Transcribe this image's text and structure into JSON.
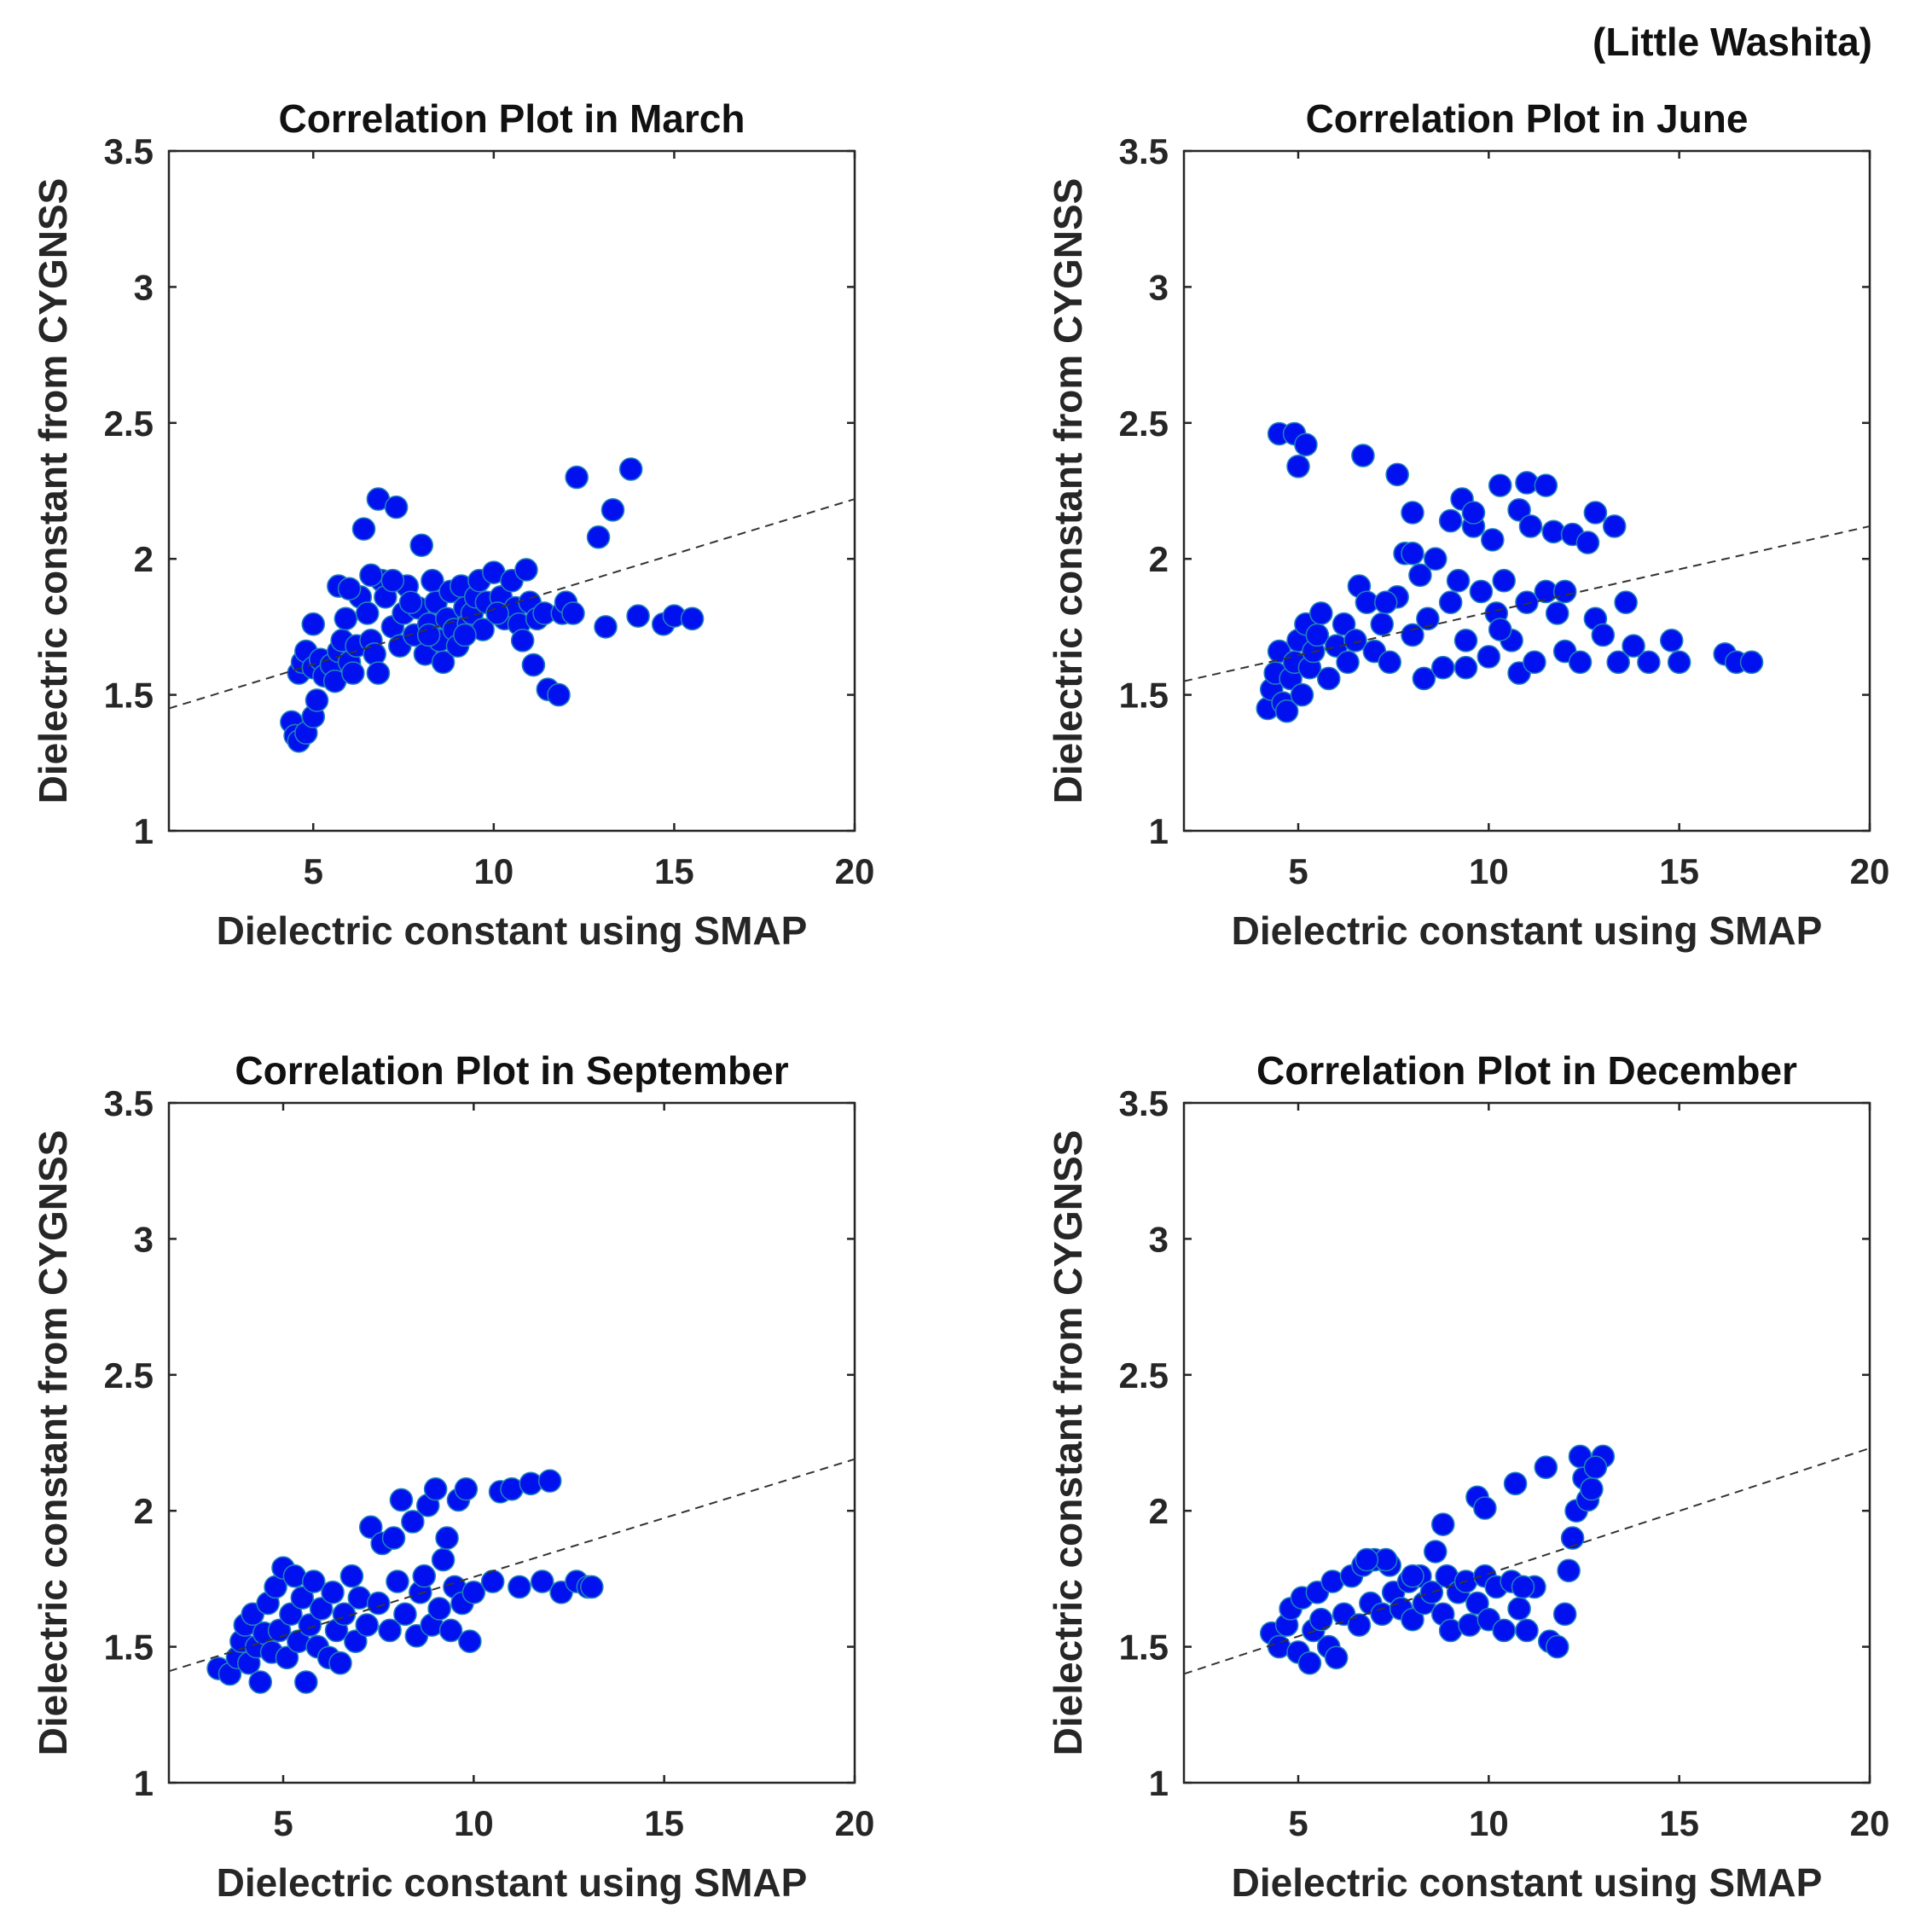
{
  "figure_note": "(Little Washita)",
  "chart_data": [
    {
      "type": "scatter",
      "title": "Correlation Plot in March",
      "xlabel": "Dielectric constant using SMAP",
      "ylabel": "Dielectric constant from CYGNSS",
      "xlim": [
        1,
        20
      ],
      "ylim": [
        1,
        3.5
      ],
      "xticks": [
        5,
        10,
        15,
        20
      ],
      "yticks": [
        1,
        1.5,
        2,
        2.5,
        3,
        3.5
      ],
      "xtick_labels": [
        "5",
        "10",
        "15",
        "20"
      ],
      "ytick_labels": [
        "1",
        "1.5",
        "2",
        "2.5",
        "3",
        "3.5"
      ],
      "fit_line": {
        "x": [
          1,
          20
        ],
        "y": [
          1.45,
          2.22
        ]
      },
      "marker_color": "#0010ee",
      "points": [
        [
          4.4,
          1.4
        ],
        [
          4.5,
          1.35
        ],
        [
          4.6,
          1.33
        ],
        [
          4.8,
          1.36
        ],
        [
          5.0,
          1.42
        ],
        [
          5.1,
          1.48
        ],
        [
          5.0,
          1.76
        ],
        [
          4.6,
          1.58
        ],
        [
          4.7,
          1.62
        ],
        [
          4.8,
          1.66
        ],
        [
          5.0,
          1.6
        ],
        [
          5.2,
          1.63
        ],
        [
          5.3,
          1.57
        ],
        [
          5.5,
          1.61
        ],
        [
          5.6,
          1.55
        ],
        [
          5.7,
          1.66
        ],
        [
          5.8,
          1.7
        ],
        [
          5.9,
          1.78
        ],
        [
          6.0,
          1.62
        ],
        [
          6.1,
          1.58
        ],
        [
          6.2,
          1.68
        ],
        [
          6.3,
          1.86
        ],
        [
          5.7,
          1.9
        ],
        [
          6.0,
          1.89
        ],
        [
          6.4,
          2.11
        ],
        [
          6.5,
          1.8
        ],
        [
          6.6,
          1.7
        ],
        [
          6.7,
          1.65
        ],
        [
          6.8,
          1.58
        ],
        [
          6.9,
          1.92
        ],
        [
          6.8,
          2.22
        ],
        [
          7.3,
          2.19
        ],
        [
          7.0,
          1.86
        ],
        [
          7.2,
          1.75
        ],
        [
          7.4,
          1.68
        ],
        [
          7.5,
          1.8
        ],
        [
          7.6,
          1.9
        ],
        [
          7.8,
          1.72
        ],
        [
          7.9,
          1.82
        ],
        [
          8.0,
          2.05
        ],
        [
          8.1,
          1.65
        ],
        [
          8.2,
          1.76
        ],
        [
          8.3,
          1.92
        ],
        [
          8.4,
          1.84
        ],
        [
          8.5,
          1.7
        ],
        [
          8.6,
          1.62
        ],
        [
          8.7,
          1.78
        ],
        [
          8.8,
          1.88
        ],
        [
          8.9,
          1.74
        ],
        [
          9.0,
          1.68
        ],
        [
          9.1,
          1.9
        ],
        [
          9.2,
          1.82
        ],
        [
          9.3,
          1.76
        ],
        [
          9.4,
          1.8
        ],
        [
          9.5,
          1.86
        ],
        [
          9.6,
          1.92
        ],
        [
          9.7,
          1.74
        ],
        [
          9.8,
          1.84
        ],
        [
          10.0,
          1.95
        ],
        [
          10.2,
          1.86
        ],
        [
          10.3,
          1.78
        ],
        [
          10.5,
          1.92
        ],
        [
          10.6,
          1.82
        ],
        [
          10.7,
          1.76
        ],
        [
          10.8,
          1.7
        ],
        [
          10.9,
          1.96
        ],
        [
          11.0,
          1.84
        ],
        [
          11.1,
          1.61
        ],
        [
          11.2,
          1.78
        ],
        [
          11.4,
          1.8
        ],
        [
          11.5,
          1.52
        ],
        [
          11.8,
          1.5
        ],
        [
          11.9,
          1.8
        ],
        [
          12.0,
          1.84
        ],
        [
          12.2,
          1.8
        ],
        [
          12.3,
          2.3
        ],
        [
          12.9,
          2.08
        ],
        [
          13.1,
          1.75
        ],
        [
          13.3,
          2.18
        ],
        [
          13.8,
          2.33
        ],
        [
          14.0,
          1.79
        ],
        [
          14.7,
          1.76
        ],
        [
          15.0,
          1.79
        ],
        [
          15.5,
          1.78
        ],
        [
          7.2,
          1.92
        ],
        [
          7.7,
          1.84
        ],
        [
          8.2,
          1.72
        ],
        [
          9.2,
          1.72
        ],
        [
          10.1,
          1.8
        ],
        [
          6.6,
          1.94
        ]
      ]
    },
    {
      "type": "scatter",
      "title": "Correlation Plot in June",
      "xlabel": "Dielectric constant using SMAP",
      "ylabel": "Dielectric constant from CYGNSS",
      "xlim": [
        2,
        20
      ],
      "ylim": [
        1,
        3.5
      ],
      "xticks": [
        5,
        10,
        15,
        20
      ],
      "yticks": [
        1,
        1.5,
        2,
        2.5,
        3,
        3.5
      ],
      "xtick_labels": [
        "5",
        "10",
        "15",
        "20"
      ],
      "ytick_labels": [
        "1",
        "1.5",
        "2",
        "2.5",
        "3",
        "3.5"
      ],
      "fit_line": {
        "x": [
          2,
          20
        ],
        "y": [
          1.55,
          2.12
        ]
      },
      "marker_color": "#0010ee",
      "points": [
        [
          4.2,
          1.45
        ],
        [
          4.3,
          1.52
        ],
        [
          4.4,
          1.58
        ],
        [
          4.5,
          1.66
        ],
        [
          4.6,
          1.47
        ],
        [
          4.7,
          1.44
        ],
        [
          4.8,
          1.56
        ],
        [
          4.9,
          1.62
        ],
        [
          5.0,
          1.7
        ],
        [
          5.1,
          1.5
        ],
        [
          5.2,
          1.76
        ],
        [
          5.3,
          1.6
        ],
        [
          5.4,
          1.66
        ],
        [
          5.5,
          1.72
        ],
        [
          5.6,
          1.8
        ],
        [
          5.8,
          1.56
        ],
        [
          6.0,
          1.68
        ],
        [
          6.2,
          1.76
        ],
        [
          6.3,
          1.62
        ],
        [
          6.5,
          1.7
        ],
        [
          6.6,
          1.9
        ],
        [
          6.8,
          1.84
        ],
        [
          7.0,
          1.66
        ],
        [
          7.2,
          1.76
        ],
        [
          7.4,
          1.62
        ],
        [
          7.6,
          1.86
        ],
        [
          7.8,
          2.02
        ],
        [
          8.0,
          1.72
        ],
        [
          8.2,
          1.94
        ],
        [
          8.3,
          1.56
        ],
        [
          8.4,
          1.78
        ],
        [
          8.6,
          2.0
        ],
        [
          8.8,
          1.6
        ],
        [
          9.0,
          1.84
        ],
        [
          9.2,
          1.92
        ],
        [
          9.4,
          1.7
        ],
        [
          9.6,
          2.12
        ],
        [
          9.8,
          1.88
        ],
        [
          10.0,
          1.64
        ],
        [
          10.2,
          1.8
        ],
        [
          10.4,
          1.92
        ],
        [
          10.6,
          1.7
        ],
        [
          10.8,
          1.58
        ],
        [
          11.0,
          1.84
        ],
        [
          11.2,
          1.62
        ],
        [
          11.5,
          1.88
        ],
        [
          11.8,
          1.8
        ],
        [
          12.0,
          1.66
        ],
        [
          12.4,
          1.62
        ],
        [
          12.8,
          1.78
        ],
        [
          13.0,
          1.72
        ],
        [
          13.4,
          1.62
        ],
        [
          13.6,
          1.84
        ],
        [
          13.8,
          1.68
        ],
        [
          14.2,
          1.62
        ],
        [
          14.8,
          1.7
        ],
        [
          15.0,
          1.62
        ],
        [
          16.2,
          1.65
        ],
        [
          16.5,
          1.62
        ],
        [
          16.9,
          1.62
        ],
        [
          4.5,
          2.46
        ],
        [
          4.9,
          2.46
        ],
        [
          5.0,
          2.34
        ],
        [
          5.2,
          2.42
        ],
        [
          6.7,
          2.38
        ],
        [
          7.6,
          2.31
        ],
        [
          8.0,
          2.17
        ],
        [
          9.0,
          2.14
        ],
        [
          9.3,
          2.22
        ],
        [
          9.6,
          2.17
        ],
        [
          10.1,
          2.07
        ],
        [
          10.3,
          2.27
        ],
        [
          10.8,
          2.18
        ],
        [
          11.0,
          2.28
        ],
        [
          11.5,
          2.27
        ],
        [
          11.7,
          2.1
        ],
        [
          12.2,
          2.09
        ],
        [
          12.6,
          2.06
        ],
        [
          12.8,
          2.17
        ],
        [
          13.3,
          2.12
        ],
        [
          11.1,
          2.12
        ],
        [
          8.0,
          2.02
        ],
        [
          9.4,
          1.6
        ],
        [
          10.3,
          1.74
        ],
        [
          7.3,
          1.84
        ],
        [
          12.0,
          1.88
        ]
      ]
    },
    {
      "type": "scatter",
      "title": "Correlation Plot in September",
      "xlabel": "Dielectric constant using SMAP",
      "ylabel": "Dielectric constant from CYGNSS",
      "xlim": [
        2,
        20
      ],
      "ylim": [
        1,
        3.5
      ],
      "xticks": [
        5,
        10,
        15,
        20
      ],
      "yticks": [
        1,
        1.5,
        2,
        2.5,
        3,
        3.5
      ],
      "xtick_labels": [
        "5",
        "10",
        "15",
        "20"
      ],
      "ytick_labels": [
        "1",
        "1.5",
        "2",
        "2.5",
        "3",
        "3.5"
      ],
      "fit_line": {
        "x": [
          2,
          20
        ],
        "y": [
          1.41,
          2.19
        ]
      },
      "marker_color": "#0010ee",
      "points": [
        [
          3.3,
          1.42
        ],
        [
          3.6,
          1.4
        ],
        [
          3.8,
          1.46
        ],
        [
          3.9,
          1.52
        ],
        [
          4.0,
          1.58
        ],
        [
          4.1,
          1.44
        ],
        [
          4.2,
          1.62
        ],
        [
          4.3,
          1.5
        ],
        [
          4.4,
          1.37
        ],
        [
          4.5,
          1.55
        ],
        [
          4.6,
          1.66
        ],
        [
          4.7,
          1.48
        ],
        [
          4.8,
          1.72
        ],
        [
          4.9,
          1.56
        ],
        [
          5.0,
          1.79
        ],
        [
          5.1,
          1.46
        ],
        [
          5.2,
          1.62
        ],
        [
          5.3,
          1.76
        ],
        [
          5.4,
          1.52
        ],
        [
          5.5,
          1.68
        ],
        [
          5.6,
          1.37
        ],
        [
          5.7,
          1.58
        ],
        [
          5.8,
          1.74
        ],
        [
          5.9,
          1.5
        ],
        [
          6.0,
          1.64
        ],
        [
          6.2,
          1.46
        ],
        [
          6.3,
          1.7
        ],
        [
          6.4,
          1.56
        ],
        [
          6.5,
          1.44
        ],
        [
          6.6,
          1.62
        ],
        [
          6.8,
          1.76
        ],
        [
          6.9,
          1.52
        ],
        [
          7.0,
          1.68
        ],
        [
          7.2,
          1.58
        ],
        [
          7.3,
          1.94
        ],
        [
          7.5,
          1.66
        ],
        [
          7.6,
          1.88
        ],
        [
          7.8,
          1.56
        ],
        [
          8.0,
          1.74
        ],
        [
          8.1,
          2.04
        ],
        [
          8.2,
          1.62
        ],
        [
          8.4,
          1.96
        ],
        [
          8.5,
          1.54
        ],
        [
          8.6,
          1.7
        ],
        [
          8.8,
          2.02
        ],
        [
          8.9,
          1.58
        ],
        [
          9.0,
          2.08
        ],
        [
          9.1,
          1.64
        ],
        [
          9.2,
          1.82
        ],
        [
          9.3,
          1.9
        ],
        [
          9.4,
          1.56
        ],
        [
          9.5,
          1.72
        ],
        [
          9.6,
          2.04
        ],
        [
          9.7,
          1.66
        ],
        [
          9.8,
          2.08
        ],
        [
          9.9,
          1.52
        ],
        [
          10.0,
          1.7
        ],
        [
          10.5,
          1.74
        ],
        [
          10.7,
          2.07
        ],
        [
          11.0,
          2.08
        ],
        [
          11.2,
          1.72
        ],
        [
          11.5,
          2.1
        ],
        [
          11.8,
          1.74
        ],
        [
          12.0,
          2.11
        ],
        [
          12.3,
          1.7
        ],
        [
          12.7,
          1.74
        ],
        [
          13.0,
          1.72
        ],
        [
          13.1,
          1.72
        ],
        [
          7.9,
          1.9
        ],
        [
          8.7,
          1.76
        ]
      ]
    },
    {
      "type": "scatter",
      "title": "Correlation Plot in December",
      "xlabel": "Dielectric constant using SMAP",
      "ylabel": "Dielectric constant from CYGNSS",
      "xlim": [
        2,
        20
      ],
      "ylim": [
        1,
        3.5
      ],
      "xticks": [
        5,
        10,
        15,
        20
      ],
      "yticks": [
        1,
        1.5,
        2,
        2.5,
        3,
        3.5
      ],
      "xtick_labels": [
        "5",
        "10",
        "15",
        "20"
      ],
      "ytick_labels": [
        "1",
        "1.5",
        "2",
        "2.5",
        "3",
        "3.5"
      ],
      "fit_line": {
        "x": [
          2,
          20
        ],
        "y": [
          1.4,
          2.23
        ]
      },
      "marker_color": "#0010ee",
      "points": [
        [
          4.3,
          1.55
        ],
        [
          4.5,
          1.5
        ],
        [
          4.7,
          1.58
        ],
        [
          4.8,
          1.64
        ],
        [
          5.0,
          1.48
        ],
        [
          5.1,
          1.68
        ],
        [
          5.3,
          1.44
        ],
        [
          5.4,
          1.56
        ],
        [
          5.5,
          1.7
        ],
        [
          5.6,
          1.6
        ],
        [
          5.8,
          1.5
        ],
        [
          5.9,
          1.74
        ],
        [
          6.0,
          1.46
        ],
        [
          6.2,
          1.62
        ],
        [
          6.4,
          1.76
        ],
        [
          6.6,
          1.58
        ],
        [
          6.7,
          1.8
        ],
        [
          6.9,
          1.66
        ],
        [
          7.0,
          1.82
        ],
        [
          7.2,
          1.62
        ],
        [
          7.4,
          1.8
        ],
        [
          7.5,
          1.7
        ],
        [
          7.7,
          1.64
        ],
        [
          7.9,
          1.74
        ],
        [
          8.0,
          1.6
        ],
        [
          8.2,
          1.76
        ],
        [
          8.3,
          1.66
        ],
        [
          8.5,
          1.7
        ],
        [
          8.6,
          1.85
        ],
        [
          8.8,
          1.62
        ],
        [
          8.9,
          1.76
        ],
        [
          9.0,
          1.56
        ],
        [
          9.2,
          1.7
        ],
        [
          9.4,
          1.74
        ],
        [
          9.5,
          1.58
        ],
        [
          9.7,
          1.66
        ],
        [
          9.9,
          1.76
        ],
        [
          10.0,
          1.6
        ],
        [
          10.2,
          1.72
        ],
        [
          10.4,
          1.56
        ],
        [
          10.6,
          1.74
        ],
        [
          10.8,
          1.64
        ],
        [
          11.0,
          1.56
        ],
        [
          11.2,
          1.72
        ],
        [
          11.6,
          1.52
        ],
        [
          11.8,
          1.5
        ],
        [
          12.0,
          1.62
        ],
        [
          12.1,
          1.78
        ],
        [
          12.2,
          1.9
        ],
        [
          12.3,
          2.0
        ],
        [
          12.4,
          2.2
        ],
        [
          12.5,
          2.12
        ],
        [
          12.6,
          2.04
        ],
        [
          12.7,
          2.08
        ],
        [
          13.0,
          2.2
        ],
        [
          12.8,
          2.16
        ],
        [
          11.5,
          2.16
        ],
        [
          10.7,
          2.1
        ],
        [
          9.7,
          2.05
        ],
        [
          8.8,
          1.95
        ],
        [
          7.3,
          1.82
        ],
        [
          6.8,
          1.82
        ],
        [
          8.0,
          1.76
        ],
        [
          9.9,
          2.01
        ],
        [
          10.9,
          1.72
        ]
      ]
    }
  ]
}
